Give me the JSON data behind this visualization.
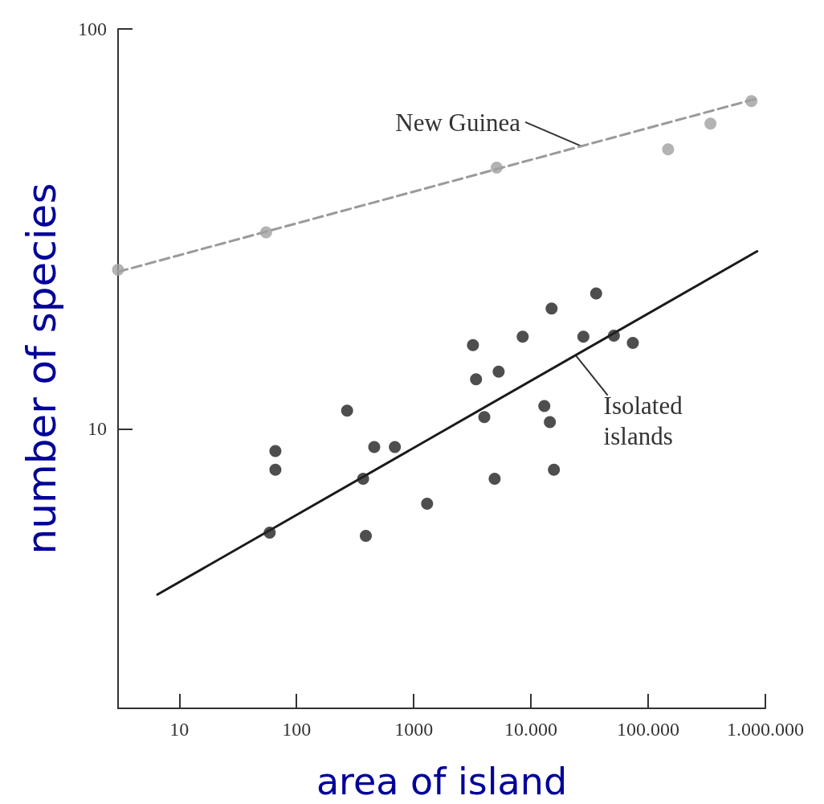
{
  "chart_data": {
    "type": "scatter",
    "xlabel": "area of island",
    "ylabel": "number of species",
    "log": "xy",
    "grid": false,
    "marker": "circle",
    "xlim": [
      3,
      1000000
    ],
    "xticks": [
      10,
      100,
      1000,
      {
        "value": 10000,
        "label": "10.000"
      },
      {
        "value": 100000,
        "label": "100.000"
      },
      {
        "value": 1000000,
        "label": "1.000.000"
      }
    ],
    "ylim": [
      2,
      100
    ],
    "yticks": [
      10,
      100
    ],
    "series": [
      {
        "color": "#a0a0a0",
        "x": [
          3,
          55,
          5100,
          148000,
          340000,
          760000
        ],
        "values": [
          25,
          31,
          45,
          50,
          58,
          66
        ]
      },
      {
        "type": "line",
        "line_style": "dashed",
        "marker": "none",
        "color": "#9a9a9a",
        "x": [
          3,
          850000
        ],
        "values": [
          24.7,
          67
        ]
      },
      {
        "color": "#222222",
        "x": [
          66,
          66,
          59,
          270,
          370,
          390,
          460,
          690,
          1300,
          3200,
          3400,
          5300,
          4000,
          4900,
          8500,
          13000,
          14500,
          15700,
          15000,
          28000,
          36000,
          51000,
          74000
        ],
        "values": [
          8.8,
          7.9,
          5.5,
          11.1,
          7.5,
          5.4,
          9.0,
          9.0,
          6.5,
          16.2,
          13.3,
          13.9,
          10.7,
          7.5,
          17,
          11.4,
          10.4,
          7.9,
          20,
          17,
          21.8,
          17.1,
          16.4
        ]
      },
      {
        "type": "line",
        "line_style": "solid",
        "marker": "none",
        "color": "#1a1a1a",
        "x": [
          6.5,
          850000
        ],
        "values": [
          3.85,
          27.8
        ]
      }
    ],
    "annotations": [
      {
        "text": "New Guinea",
        "x": 27000,
        "y": 50.9
      },
      {
        "text": "Isolated\nislands",
        "x": 24000,
        "y": 15.3
      }
    ]
  }
}
